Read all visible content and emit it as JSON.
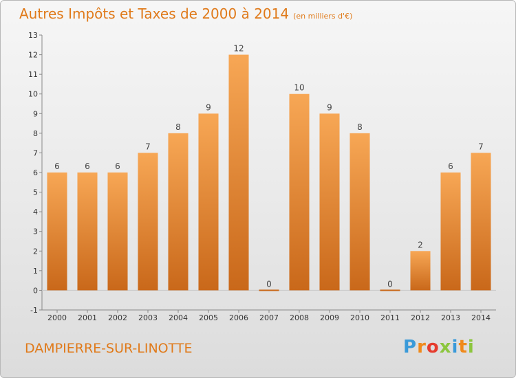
{
  "header": {
    "title": "Autres Impôts et Taxes de 2000 à 2014",
    "subtitle": "(en milliers d'€)"
  },
  "footer": {
    "city": "DAMPIERRE-SUR-LINOTTE",
    "logo_letters": [
      "P",
      "r",
      "o",
      "x",
      "i",
      "t",
      "i"
    ],
    "logo_colors": [
      "#3a9ad9",
      "#f08a1c",
      "#e63c2e",
      "#8cc63e",
      "#3a9ad9",
      "#f08a1c",
      "#8cc63e"
    ]
  },
  "chart_data": {
    "type": "bar",
    "title": "Autres Impôts et Taxes de 2000 à 2014",
    "subtitle": "(en milliers d'€)",
    "categories": [
      "2000",
      "2001",
      "2002",
      "2003",
      "2004",
      "2005",
      "2006",
      "2007",
      "2008",
      "2009",
      "2010",
      "2011",
      "2012",
      "2013",
      "2014"
    ],
    "values": [
      6,
      6,
      6,
      7,
      8,
      9,
      12,
      0,
      10,
      9,
      8,
      0,
      2,
      6,
      7
    ],
    "ylim": [
      -1,
      13
    ],
    "yticks": [
      -1,
      0,
      1,
      2,
      3,
      4,
      5,
      6,
      7,
      8,
      9,
      10,
      11,
      12,
      13
    ],
    "grid": false,
    "bar_color_top": "#f7a755",
    "bar_color_bottom": "#c9681a"
  }
}
